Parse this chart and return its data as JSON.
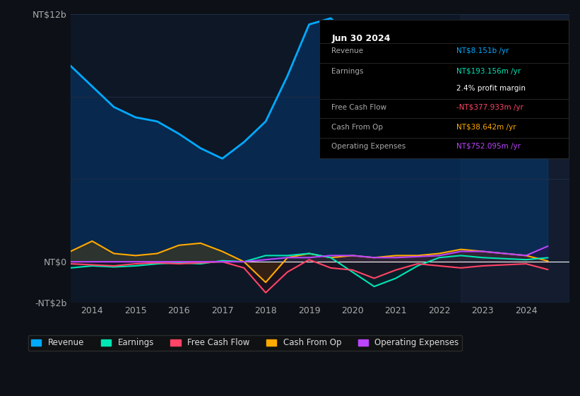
{
  "bg_color": "#0d1117",
  "plot_bg_color": "#0e1726",
  "grid_color": "#1e2d45",
  "title_text": "Jun 30 2024",
  "info_box": {
    "Revenue": {
      "value": "NT$8.151b /yr",
      "color": "#00aaff"
    },
    "Earnings": {
      "value": "NT$193.156m /yr",
      "color": "#00e5b4"
    },
    "profit_margin": {
      "value": "2.4% profit margin",
      "color": "#ffffff"
    },
    "Free Cash Flow": {
      "value": "-NT$377.933m /yr",
      "color": "#ff4466"
    },
    "Cash From Op": {
      "value": "NT$38.642m /yr",
      "color": "#ffaa00"
    },
    "Operating Expenses": {
      "value": "NT$752.095m /yr",
      "color": "#bb44ff"
    }
  },
  "ylim": [
    -2000000000.0,
    12000000000.0
  ],
  "yticks": [
    -2000000000.0,
    0,
    4000000000.0,
    8000000000.0,
    12000000000.0
  ],
  "ytick_labels": [
    "-NT$2b",
    "NT$0",
    "",
    "",
    "NT$12b"
  ],
  "legend": [
    {
      "label": "Revenue",
      "color": "#00aaff"
    },
    {
      "label": "Earnings",
      "color": "#00e5b4"
    },
    {
      "label": "Free Cash Flow",
      "color": "#ff4466"
    },
    {
      "label": "Cash From Op",
      "color": "#ffaa00"
    },
    {
      "label": "Operating Expenses",
      "color": "#bb44ff"
    }
  ],
  "revenue": {
    "years": [
      2013.5,
      2014.0,
      2014.5,
      2015.0,
      2015.5,
      2016.0,
      2016.5,
      2017.0,
      2017.5,
      2018.0,
      2018.5,
      2019.0,
      2019.5,
      2020.0,
      2020.5,
      2021.0,
      2021.5,
      2022.0,
      2022.5,
      2023.0,
      2023.5,
      2024.0,
      2024.5
    ],
    "values": [
      9500000000.0,
      8500000000.0,
      7500000000.0,
      7000000000.0,
      6800000000.0,
      6200000000.0,
      5500000000.0,
      5000000000.0,
      5800000000.0,
      6800000000.0,
      9000000000.0,
      11500000000.0,
      11800000000.0,
      10800000000.0,
      9500000000.0,
      7500000000.0,
      7800000000.0,
      9000000000.0,
      10500000000.0,
      9000000000.0,
      8000000000.0,
      7500000000.0,
      8150000000.0
    ]
  },
  "earnings": {
    "years": [
      2013.5,
      2014.0,
      2014.5,
      2015.0,
      2015.5,
      2016.0,
      2016.5,
      2017.0,
      2017.5,
      2018.0,
      2018.5,
      2019.0,
      2019.5,
      2020.0,
      2020.5,
      2021.0,
      2021.5,
      2022.0,
      2022.5,
      2023.0,
      2023.5,
      2024.0,
      2024.5
    ],
    "values": [
      -300000000.0,
      -200000000.0,
      -250000000.0,
      -200000000.0,
      -100000000.0,
      -50000000.0,
      -100000000.0,
      50000000.0,
      0,
      300000000.0,
      300000000.0,
      400000000.0,
      200000000.0,
      -500000000.0,
      -1200000000.0,
      -800000000.0,
      -200000000.0,
      200000000.0,
      300000000.0,
      200000000.0,
      150000000.0,
      100000000.0,
      193000000.0
    ]
  },
  "free_cash_flow": {
    "years": [
      2013.5,
      2014.0,
      2014.5,
      2015.0,
      2015.5,
      2016.0,
      2016.5,
      2017.0,
      2017.5,
      2018.0,
      2018.5,
      2019.0,
      2019.5,
      2020.0,
      2020.5,
      2021.0,
      2021.5,
      2022.0,
      2022.5,
      2023.0,
      2023.5,
      2024.0,
      2024.5
    ],
    "values": [
      -100000000.0,
      -150000000.0,
      -200000000.0,
      -100000000.0,
      -50000000.0,
      -100000000.0,
      -50000000.0,
      0,
      -300000000.0,
      -1500000000.0,
      -500000000.0,
      100000000.0,
      -300000000.0,
      -400000000.0,
      -800000000.0,
      -400000000.0,
      -100000000.0,
      -200000000.0,
      -300000000.0,
      -200000000.0,
      -150000000.0,
      -100000000.0,
      -378000000.0
    ]
  },
  "cash_from_op": {
    "years": [
      2013.5,
      2014.0,
      2014.5,
      2015.0,
      2015.5,
      2016.0,
      2016.5,
      2017.0,
      2017.5,
      2018.0,
      2018.5,
      2019.0,
      2019.5,
      2020.0,
      2020.5,
      2021.0,
      2021.5,
      2022.0,
      2022.5,
      2023.0,
      2023.5,
      2024.0,
      2024.5
    ],
    "values": [
      500000000.0,
      1000000000.0,
      400000000.0,
      300000000.0,
      400000000.0,
      800000000.0,
      900000000.0,
      500000000.0,
      0,
      -1000000000.0,
      200000000.0,
      400000000.0,
      200000000.0,
      300000000.0,
      200000000.0,
      300000000.0,
      300000000.0,
      400000000.0,
      600000000.0,
      500000000.0,
      400000000.0,
      300000000.0,
      38600000.0
    ]
  },
  "operating_expenses": {
    "years": [
      2013.5,
      2014.0,
      2014.5,
      2015.0,
      2015.5,
      2016.0,
      2016.5,
      2017.0,
      2017.5,
      2018.0,
      2018.5,
      2019.0,
      2019.5,
      2020.0,
      2020.5,
      2021.0,
      2021.5,
      2022.0,
      2022.5,
      2023.0,
      2023.5,
      2024.0,
      2024.5
    ],
    "values": [
      0,
      0,
      0,
      0,
      0,
      0,
      0,
      0,
      0,
      100000000.0,
      200000000.0,
      200000000.0,
      300000000.0,
      300000000.0,
      200000000.0,
      200000000.0,
      250000000.0,
      300000000.0,
      500000000.0,
      500000000.0,
      400000000.0,
      300000000.0,
      752000000.0
    ]
  }
}
